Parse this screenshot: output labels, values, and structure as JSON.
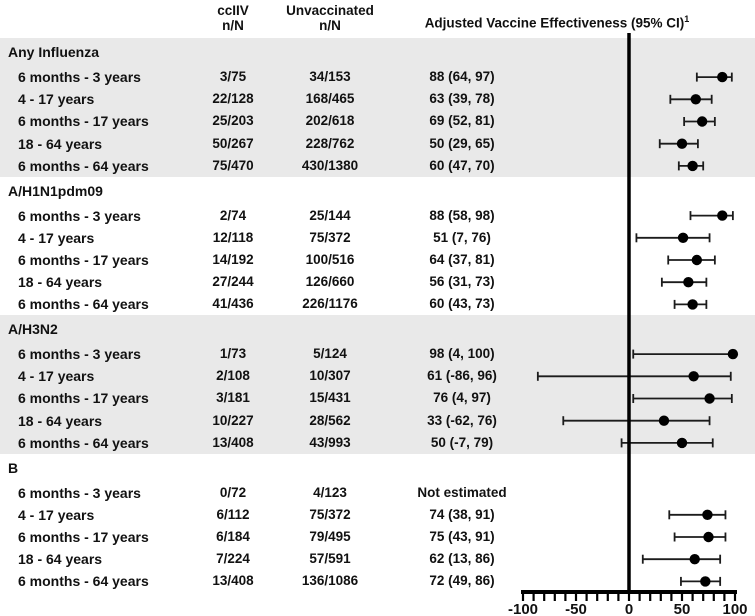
{
  "header": {
    "cciiv_line1": "ccIIV",
    "cciiv_line2": "n/N",
    "unvacc_line1": "Unvaccinated",
    "unvacc_line2": "n/N",
    "ve_label": "Adjusted Vaccine Effectiveness (95% CI)",
    "ve_superscript": "1"
  },
  "colors": {
    "band": "#e9e9e9",
    "marker": "#000000",
    "bar": "#1c1c1c",
    "text": "#111111"
  },
  "chart_data": {
    "type": "forest",
    "title": "Adjusted Vaccine Effectiveness (95% CI)",
    "axis": {
      "min": -100,
      "max": 100,
      "major_ticks": [
        -100,
        -50,
        0,
        50,
        100
      ],
      "minor_tick_step": 10,
      "reference_line": 0
    },
    "sections": [
      {
        "label": "Any Influenza",
        "shaded": true,
        "rows": [
          {
            "label": "6 months - 3 years",
            "cciiv": "3/75",
            "unvaccinated": "34/153",
            "ve_text": "88 (64, 97)",
            "estimate": 88,
            "ci_low": 64,
            "ci_high": 97
          },
          {
            "label": "4 - 17 years",
            "cciiv": "22/128",
            "unvaccinated": "168/465",
            "ve_text": "63 (39, 78)",
            "estimate": 63,
            "ci_low": 39,
            "ci_high": 78
          },
          {
            "label": "6 months - 17 years",
            "cciiv": "25/203",
            "unvaccinated": "202/618",
            "ve_text": "69 (52, 81)",
            "estimate": 69,
            "ci_low": 52,
            "ci_high": 81
          },
          {
            "label": "18 - 64 years",
            "cciiv": "50/267",
            "unvaccinated": "228/762",
            "ve_text": "50 (29, 65)",
            "estimate": 50,
            "ci_low": 29,
            "ci_high": 65
          },
          {
            "label": "6 months - 64 years",
            "cciiv": "75/470",
            "unvaccinated": "430/1380",
            "ve_text": "60 (47, 70)",
            "estimate": 60,
            "ci_low": 47,
            "ci_high": 70
          }
        ]
      },
      {
        "label": "A/H1N1pdm09",
        "shaded": false,
        "rows": [
          {
            "label": "6 months - 3 years",
            "cciiv": "2/74",
            "unvaccinated": "25/144",
            "ve_text": "88 (58, 98)",
            "estimate": 88,
            "ci_low": 58,
            "ci_high": 98
          },
          {
            "label": "4 - 17 years",
            "cciiv": "12/118",
            "unvaccinated": "75/372",
            "ve_text": "51 (7, 76)",
            "estimate": 51,
            "ci_low": 7,
            "ci_high": 76
          },
          {
            "label": "6 months - 17 years",
            "cciiv": "14/192",
            "unvaccinated": "100/516",
            "ve_text": "64 (37, 81)",
            "estimate": 64,
            "ci_low": 37,
            "ci_high": 81
          },
          {
            "label": "18 - 64 years",
            "cciiv": "27/244",
            "unvaccinated": "126/660",
            "ve_text": "56 (31, 73)",
            "estimate": 56,
            "ci_low": 31,
            "ci_high": 73
          },
          {
            "label": "6 months - 64 years",
            "cciiv": "41/436",
            "unvaccinated": "226/1176",
            "ve_text": "60 (43, 73)",
            "estimate": 60,
            "ci_low": 43,
            "ci_high": 73
          }
        ]
      },
      {
        "label": "A/H3N2",
        "shaded": true,
        "rows": [
          {
            "label": "6 months - 3 years",
            "cciiv": "1/73",
            "unvaccinated": "5/124",
            "ve_text": "98 (4, 100)",
            "estimate": 98,
            "ci_low": 4,
            "ci_high": 100
          },
          {
            "label": "4 - 17 years",
            "cciiv": "2/108",
            "unvaccinated": "10/307",
            "ve_text": "61 (-86, 96)",
            "estimate": 61,
            "ci_low": -86,
            "ci_high": 96
          },
          {
            "label": "6 months - 17 years",
            "cciiv": "3/181",
            "unvaccinated": "15/431",
            "ve_text": "76 (4, 97)",
            "estimate": 76,
            "ci_low": 4,
            "ci_high": 97
          },
          {
            "label": "18 - 64 years",
            "cciiv": "10/227",
            "unvaccinated": "28/562",
            "ve_text": "33 (-62, 76)",
            "estimate": 33,
            "ci_low": -62,
            "ci_high": 76
          },
          {
            "label": "6 months - 64 years",
            "cciiv": "13/408",
            "unvaccinated": "43/993",
            "ve_text": "50 (-7, 79)",
            "estimate": 50,
            "ci_low": -7,
            "ci_high": 79
          }
        ]
      },
      {
        "label": "B",
        "shaded": false,
        "rows": [
          {
            "label": "6 months - 3 years",
            "cciiv": "0/72",
            "unvaccinated": "4/123",
            "ve_text": "Not estimated",
            "estimate": null,
            "ci_low": null,
            "ci_high": null
          },
          {
            "label": "4 - 17 years",
            "cciiv": "6/112",
            "unvaccinated": "75/372",
            "ve_text": "74 (38, 91)",
            "estimate": 74,
            "ci_low": 38,
            "ci_high": 91
          },
          {
            "label": "6 months - 17 years",
            "cciiv": "6/184",
            "unvaccinated": "79/495",
            "ve_text": "75 (43, 91)",
            "estimate": 75,
            "ci_low": 43,
            "ci_high": 91
          },
          {
            "label": "18 - 64 years",
            "cciiv": "7/224",
            "unvaccinated": "57/591",
            "ve_text": "62 (13, 86)",
            "estimate": 62,
            "ci_low": 13,
            "ci_high": 86
          },
          {
            "label": "6 months - 64 years",
            "cciiv": "13/408",
            "unvaccinated": "136/1086",
            "ve_text": "72 (49, 86)",
            "estimate": 72,
            "ci_low": 49,
            "ci_high": 86
          }
        ]
      }
    ]
  }
}
